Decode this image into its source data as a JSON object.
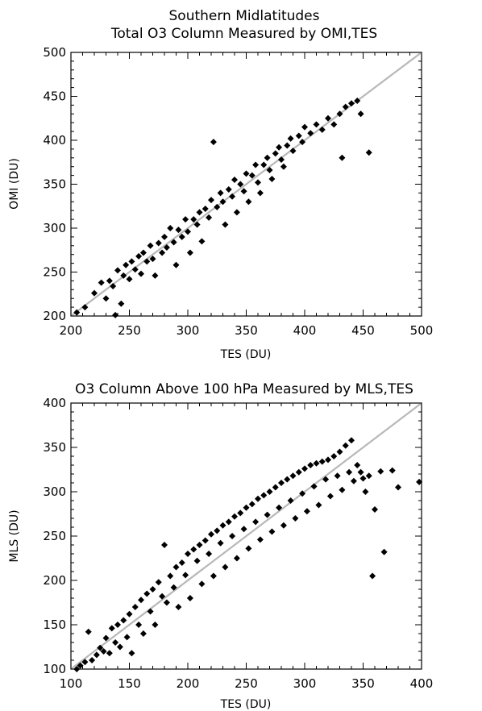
{
  "chart_data": [
    {
      "type": "scatter",
      "title": "Southern Midlatitudes",
      "subtitle": "Total O3 Column Measured by OMI,TES",
      "xlabel": "TES (DU)",
      "ylabel": "OMI (DU)",
      "xlim": [
        200,
        500
      ],
      "ylim": [
        200,
        500
      ],
      "xticks": [
        "200",
        "250",
        "300",
        "350",
        "400",
        "450",
        "500"
      ],
      "yticks": [
        "200",
        "250",
        "300",
        "350",
        "400",
        "450",
        "500"
      ],
      "reference_line": "1:1",
      "marker": "diamond",
      "marker_color": "#000000",
      "line_color": "#b8b8b8",
      "grid": false,
      "points": [
        [
          205,
          204
        ],
        [
          212,
          210
        ],
        [
          220,
          226
        ],
        [
          226,
          238
        ],
        [
          230,
          220
        ],
        [
          233,
          240
        ],
        [
          236,
          234
        ],
        [
          238,
          201
        ],
        [
          240,
          252
        ],
        [
          243,
          214
        ],
        [
          245,
          246
        ],
        [
          247,
          258
        ],
        [
          250,
          242
        ],
        [
          252,
          262
        ],
        [
          255,
          253
        ],
        [
          258,
          268
        ],
        [
          260,
          248
        ],
        [
          262,
          272
        ],
        [
          265,
          262
        ],
        [
          268,
          280
        ],
        [
          270,
          265
        ],
        [
          272,
          246
        ],
        [
          275,
          283
        ],
        [
          278,
          272
        ],
        [
          280,
          290
        ],
        [
          282,
          278
        ],
        [
          285,
          300
        ],
        [
          288,
          284
        ],
        [
          290,
          258
        ],
        [
          292,
          298
        ],
        [
          295,
          290
        ],
        [
          298,
          310
        ],
        [
          300,
          296
        ],
        [
          302,
          272
        ],
        [
          305,
          310
        ],
        [
          308,
          304
        ],
        [
          310,
          318
        ],
        [
          312,
          285
        ],
        [
          315,
          322
        ],
        [
          318,
          312
        ],
        [
          320,
          332
        ],
        [
          322,
          398
        ],
        [
          325,
          324
        ],
        [
          328,
          340
        ],
        [
          330,
          330
        ],
        [
          332,
          304
        ],
        [
          335,
          344
        ],
        [
          338,
          336
        ],
        [
          340,
          355
        ],
        [
          342,
          318
        ],
        [
          345,
          350
        ],
        [
          348,
          342
        ],
        [
          350,
          362
        ],
        [
          352,
          330
        ],
        [
          355,
          360
        ],
        [
          358,
          372
        ],
        [
          360,
          352
        ],
        [
          362,
          340
        ],
        [
          365,
          372
        ],
        [
          368,
          380
        ],
        [
          370,
          366
        ],
        [
          372,
          356
        ],
        [
          375,
          385
        ],
        [
          378,
          392
        ],
        [
          380,
          378
        ],
        [
          382,
          370
        ],
        [
          385,
          394
        ],
        [
          388,
          402
        ],
        [
          390,
          388
        ],
        [
          395,
          405
        ],
        [
          398,
          398
        ],
        [
          400,
          415
        ],
        [
          405,
          408
        ],
        [
          410,
          418
        ],
        [
          415,
          412
        ],
        [
          420,
          425
        ],
        [
          425,
          418
        ],
        [
          430,
          430
        ],
        [
          432,
          380
        ],
        [
          435,
          438
        ],
        [
          440,
          442
        ],
        [
          445,
          445
        ],
        [
          448,
          430
        ],
        [
          455,
          386
        ]
      ]
    },
    {
      "type": "scatter",
      "title": "O3 Column Above 100 hPa Measured by MLS,TES",
      "xlabel": "TES (DU)",
      "ylabel": "MLS (DU)",
      "xlim": [
        100,
        400
      ],
      "ylim": [
        100,
        400
      ],
      "xticks": [
        "100",
        "150",
        "200",
        "250",
        "300",
        "350",
        "400"
      ],
      "yticks": [
        "100",
        "150",
        "200",
        "250",
        "300",
        "350",
        "400"
      ],
      "reference_line": "1:1",
      "marker": "diamond",
      "marker_color": "#000000",
      "line_color": "#b8b8b8",
      "grid": false,
      "points": [
        [
          105,
          100
        ],
        [
          108,
          104
        ],
        [
          112,
          108
        ],
        [
          115,
          142
        ],
        [
          118,
          110
        ],
        [
          122,
          116
        ],
        [
          125,
          124
        ],
        [
          128,
          120
        ],
        [
          130,
          135
        ],
        [
          133,
          118
        ],
        [
          135,
          146
        ],
        [
          138,
          130
        ],
        [
          140,
          150
        ],
        [
          142,
          125
        ],
        [
          145,
          155
        ],
        [
          148,
          136
        ],
        [
          150,
          162
        ],
        [
          152,
          118
        ],
        [
          155,
          170
        ],
        [
          158,
          150
        ],
        [
          160,
          178
        ],
        [
          162,
          140
        ],
        [
          165,
          185
        ],
        [
          168,
          165
        ],
        [
          170,
          190
        ],
        [
          172,
          150
        ],
        [
          175,
          198
        ],
        [
          178,
          182
        ],
        [
          180,
          240
        ],
        [
          182,
          175
        ],
        [
          185,
          205
        ],
        [
          188,
          192
        ],
        [
          190,
          215
        ],
        [
          192,
          170
        ],
        [
          195,
          220
        ],
        [
          198,
          206
        ],
        [
          200,
          230
        ],
        [
          202,
          180
        ],
        [
          205,
          235
        ],
        [
          208,
          222
        ],
        [
          210,
          240
        ],
        [
          212,
          196
        ],
        [
          215,
          245
        ],
        [
          218,
          230
        ],
        [
          220,
          252
        ],
        [
          222,
          205
        ],
        [
          225,
          256
        ],
        [
          228,
          242
        ],
        [
          230,
          262
        ],
        [
          232,
          215
        ],
        [
          235,
          266
        ],
        [
          238,
          250
        ],
        [
          240,
          272
        ],
        [
          242,
          225
        ],
        [
          245,
          276
        ],
        [
          248,
          258
        ],
        [
          250,
          282
        ],
        [
          252,
          236
        ],
        [
          255,
          286
        ],
        [
          258,
          266
        ],
        [
          260,
          292
        ],
        [
          262,
          246
        ],
        [
          265,
          296
        ],
        [
          268,
          274
        ],
        [
          270,
          300
        ],
        [
          272,
          255
        ],
        [
          275,
          305
        ],
        [
          278,
          282
        ],
        [
          280,
          310
        ],
        [
          282,
          262
        ],
        [
          285,
          314
        ],
        [
          288,
          290
        ],
        [
          290,
          318
        ],
        [
          292,
          270
        ],
        [
          295,
          322
        ],
        [
          298,
          298
        ],
        [
          300,
          326
        ],
        [
          302,
          278
        ],
        [
          305,
          330
        ],
        [
          308,
          306
        ],
        [
          310,
          332
        ],
        [
          312,
          285
        ],
        [
          315,
          334
        ],
        [
          318,
          314
        ],
        [
          320,
          336
        ],
        [
          322,
          295
        ],
        [
          325,
          340
        ],
        [
          328,
          318
        ],
        [
          330,
          345
        ],
        [
          332,
          302
        ],
        [
          335,
          352
        ],
        [
          338,
          322
        ],
        [
          340,
          358
        ],
        [
          342,
          312
        ],
        [
          345,
          330
        ],
        [
          348,
          322
        ],
        [
          350,
          315
        ],
        [
          352,
          300
        ],
        [
          355,
          318
        ],
        [
          358,
          205
        ],
        [
          360,
          280
        ],
        [
          365,
          323
        ],
        [
          368,
          232
        ],
        [
          375,
          324
        ],
        [
          380,
          305
        ],
        [
          398,
          311
        ]
      ]
    }
  ]
}
